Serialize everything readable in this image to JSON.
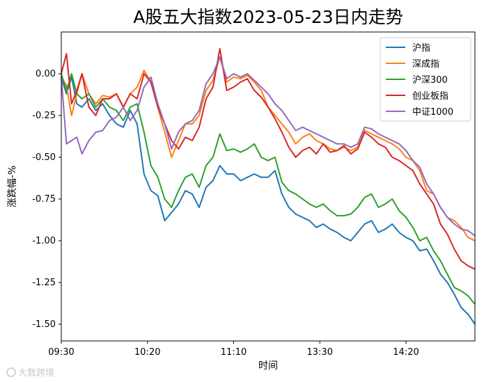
{
  "watermark": "大数跨境",
  "chart_data": {
    "type": "line",
    "title": "A股五大指数2023-05-23日内走势",
    "xlabel": "时间",
    "ylabel": "涨跌幅-%",
    "xlim": [
      0,
      240
    ],
    "ylim": [
      -1.6,
      0.25
    ],
    "yticks": [
      0.0,
      -0.25,
      -0.5,
      -0.75,
      -1.0,
      -1.25,
      -1.5
    ],
    "ytick_labels": [
      "0.00",
      "-0.25",
      "-0.50",
      "-0.75",
      "-1.00",
      "-1.25",
      "-1.50"
    ],
    "xticks": [
      0,
      50,
      100,
      150,
      200
    ],
    "xtick_labels": [
      "09:30",
      "10:20",
      "11:10",
      "13:30",
      "14:20"
    ],
    "grid": false,
    "legend_position": "top-right",
    "x_points": [
      0,
      3,
      6,
      9,
      12,
      16,
      20,
      24,
      28,
      32,
      36,
      40,
      44,
      48,
      52,
      56,
      60,
      64,
      68,
      72,
      76,
      80,
      84,
      88,
      92,
      96,
      100,
      104,
      108,
      112,
      116,
      120,
      124,
      128,
      132,
      136,
      140,
      144,
      148,
      152,
      156,
      160,
      164,
      168,
      172,
      176,
      180,
      184,
      188,
      192,
      196,
      200,
      204,
      208,
      212,
      216,
      220,
      224,
      228,
      232,
      236,
      240
    ],
    "series": [
      {
        "name": "沪指",
        "color": "#1f77b4",
        "values": [
          -0.02,
          -0.12,
          -0.02,
          -0.18,
          -0.2,
          -0.15,
          -0.22,
          -0.18,
          -0.25,
          -0.3,
          -0.32,
          -0.22,
          -0.3,
          -0.6,
          -0.7,
          -0.73,
          -0.88,
          -0.83,
          -0.78,
          -0.7,
          -0.72,
          -0.8,
          -0.68,
          -0.64,
          -0.55,
          -0.6,
          -0.6,
          -0.64,
          -0.62,
          -0.6,
          -0.62,
          -0.62,
          -0.58,
          -0.72,
          -0.8,
          -0.84,
          -0.86,
          -0.88,
          -0.92,
          -0.9,
          -0.93,
          -0.95,
          -0.98,
          -1.0,
          -0.95,
          -0.9,
          -0.88,
          -0.95,
          -0.93,
          -0.9,
          -0.95,
          -0.98,
          -1.0,
          -1.06,
          -1.05,
          -1.12,
          -1.2,
          -1.25,
          -1.32,
          -1.4,
          -1.44,
          -1.5
        ]
      },
      {
        "name": "深成指",
        "color": "#ff7f0e",
        "values": [
          -0.02,
          -0.07,
          -0.25,
          -0.12,
          0.0,
          -0.12,
          -0.18,
          -0.13,
          -0.14,
          -0.12,
          -0.2,
          -0.12,
          -0.08,
          0.02,
          -0.05,
          -0.2,
          -0.35,
          -0.5,
          -0.4,
          -0.3,
          -0.3,
          -0.25,
          -0.1,
          -0.04,
          0.1,
          -0.05,
          -0.02,
          -0.03,
          -0.01,
          -0.05,
          -0.1,
          -0.2,
          -0.25,
          -0.3,
          -0.35,
          -0.42,
          -0.38,
          -0.36,
          -0.4,
          -0.42,
          -0.45,
          -0.46,
          -0.44,
          -0.46,
          -0.44,
          -0.34,
          -0.36,
          -0.38,
          -0.4,
          -0.42,
          -0.45,
          -0.5,
          -0.52,
          -0.58,
          -0.7,
          -0.72,
          -0.8,
          -0.86,
          -0.88,
          -0.92,
          -0.98,
          -1.0
        ]
      },
      {
        "name": "沪深300",
        "color": "#2ca02c",
        "values": [
          0.0,
          -0.1,
          0.0,
          -0.12,
          -0.15,
          -0.12,
          -0.2,
          -0.15,
          -0.2,
          -0.22,
          -0.28,
          -0.2,
          -0.18,
          -0.35,
          -0.55,
          -0.62,
          -0.75,
          -0.8,
          -0.7,
          -0.62,
          -0.6,
          -0.68,
          -0.55,
          -0.5,
          -0.36,
          -0.46,
          -0.45,
          -0.47,
          -0.45,
          -0.42,
          -0.5,
          -0.52,
          -0.5,
          -0.65,
          -0.7,
          -0.72,
          -0.75,
          -0.78,
          -0.8,
          -0.78,
          -0.82,
          -0.85,
          -0.85,
          -0.84,
          -0.8,
          -0.74,
          -0.72,
          -0.8,
          -0.78,
          -0.75,
          -0.82,
          -0.86,
          -0.92,
          -1.0,
          -0.98,
          -1.06,
          -1.12,
          -1.2,
          -1.28,
          -1.3,
          -1.33,
          -1.38
        ]
      },
      {
        "name": "创业板指",
        "color": "#d62728",
        "values": [
          0.0,
          0.12,
          -0.18,
          -0.1,
          0.0,
          -0.2,
          -0.25,
          -0.15,
          -0.15,
          -0.12,
          -0.2,
          -0.12,
          -0.15,
          0.0,
          -0.05,
          -0.2,
          -0.3,
          -0.4,
          -0.45,
          -0.38,
          -0.4,
          -0.32,
          -0.15,
          -0.08,
          0.15,
          -0.1,
          -0.08,
          -0.05,
          -0.03,
          -0.1,
          -0.14,
          -0.2,
          -0.27,
          -0.35,
          -0.44,
          -0.5,
          -0.46,
          -0.44,
          -0.48,
          -0.42,
          -0.47,
          -0.46,
          -0.43,
          -0.48,
          -0.45,
          -0.35,
          -0.38,
          -0.42,
          -0.44,
          -0.5,
          -0.52,
          -0.55,
          -0.58,
          -0.66,
          -0.72,
          -0.78,
          -0.9,
          -0.96,
          -1.05,
          -1.12,
          -1.15,
          -1.17
        ]
      },
      {
        "name": "中证1000",
        "color": "#9467bd",
        "values": [
          -0.02,
          -0.42,
          -0.4,
          -0.38,
          -0.48,
          -0.4,
          -0.35,
          -0.34,
          -0.28,
          -0.26,
          -0.2,
          -0.28,
          -0.22,
          -0.08,
          -0.02,
          -0.18,
          -0.3,
          -0.45,
          -0.35,
          -0.3,
          -0.28,
          -0.22,
          -0.06,
          0.0,
          0.1,
          -0.03,
          0.0,
          -0.02,
          0.0,
          -0.04,
          -0.08,
          -0.12,
          -0.18,
          -0.22,
          -0.28,
          -0.34,
          -0.32,
          -0.34,
          -0.36,
          -0.38,
          -0.4,
          -0.42,
          -0.42,
          -0.44,
          -0.42,
          -0.32,
          -0.33,
          -0.36,
          -0.38,
          -0.4,
          -0.42,
          -0.46,
          -0.52,
          -0.56,
          -0.66,
          -0.72,
          -0.8,
          -0.86,
          -0.9,
          -0.93,
          -0.94,
          -0.97
        ]
      }
    ]
  }
}
